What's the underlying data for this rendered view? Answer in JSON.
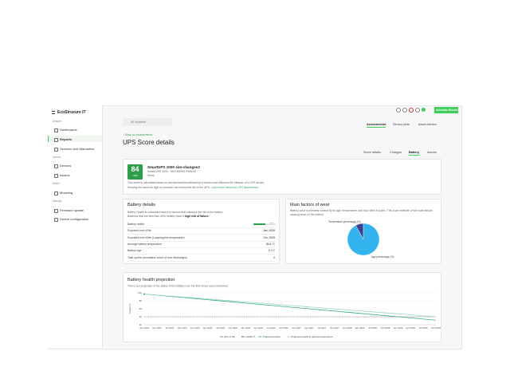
{
  "sidebar": {
    "product": "EcoStruxure IT",
    "sections": [
      {
        "title": "Analyze",
        "items": [
          "Dashboards",
          "Reports",
          "Services and Warranties"
        ]
      },
      {
        "title": "Monitor",
        "items": [
          "Devices",
          "Alarms"
        ]
      },
      {
        "title": "Model",
        "items": [
          "Modeling"
        ]
      },
      {
        "title": "Manage",
        "items": [
          "Firmware update",
          "Device configuration"
        ]
      }
    ]
  },
  "header": {
    "search_placeholder": "All locations",
    "tabs": [
      "Assessments",
      "Sensor plots",
      "Asset Advisor"
    ],
    "brand": "Schneider Electric"
  },
  "page": {
    "back_link": "‹ Back to Assessments",
    "title": "UPS Score details",
    "tabs": [
      "Score details",
      "Changes",
      "Battery",
      "Alarms"
    ]
  },
  "score_card": {
    "score": 84,
    "score_suffix": "/100",
    "device_name": "SmartUPS 1000 sim-changes2",
    "device_model": "Smart-UPS 1000 · SM-1M20B17N5N1/E",
    "location": "Remy",
    "description": "This score is calculated based on anonymized benchmarking of factors that influence the lifespan of a UPS device.",
    "description_2": "Keeping the score as high as possible can extend the life of the UPS.",
    "link": "Learn more about the UPS assessment."
  },
  "battery_details": {
    "title": "Battery details",
    "description": "Battery health is calculated based on factors that influence the life of the battery.",
    "description_2": "Batteries that are less than 30% healthy have a",
    "description_emphasis": "high risk of failure.",
    "rows": [
      {
        "label": "Battery health",
        "value": 55,
        "value_label": "55%"
      },
      {
        "label": "Expected end of life",
        "value": "Jan, 2029"
      },
      {
        "label": "Expected end of life (Lowering the temperature)",
        "value": "Oct, 2029"
      },
      {
        "label": "Average battery temperature",
        "value": "26.8 °C"
      },
      {
        "label": "Battery age",
        "value": "0.2 Y"
      },
      {
        "label": "Total cycles (cumulative count of over discharges)",
        "value": "0"
      }
    ]
  },
  "wear": {
    "title": "Main factors of wear",
    "description": "Battery wear is primarily caused by its age, temperature, and how often it cycles. This is an estimate of the main factors causing wear on the battery."
  },
  "chart_data": [
    {
      "type": "pie",
      "categories": [
        "Temperature percentage (%)",
        "Age percentage (%)"
      ],
      "values": [
        8,
        92
      ],
      "colors": [
        "#3b3f8f",
        "#33b4ef"
      ]
    },
    {
      "type": "line",
      "title": "Battery health projection",
      "subtitle": "This is our projection of the status of the battery over the time it has been monitored.",
      "y_label": "Health %",
      "categories": [
        "Jan 2024",
        "Apr 2024",
        "Jul 2024",
        "Oct 2024",
        "Jan 2025",
        "Apr 2025",
        "Jul 2025",
        "Oct 2025",
        "Jan 2026",
        "Apr 2026",
        "Jul 2026",
        "Oct 2026",
        "Jan 2027",
        "Apr 2027",
        "Jul 2027",
        "Oct 2027",
        "Jan 2028",
        "Apr 2028",
        "Jul 2028",
        "Oct 2028",
        "Jan 2029",
        "Apr 2029",
        "Jul 2029",
        "Oct 2029"
      ],
      "ylim": [
        20,
        100
      ],
      "yticks": [
        20,
        40,
        60,
        80,
        100
      ],
      "series": [
        {
          "name": "End of life",
          "color": "#555555",
          "dashed": true,
          "values": [
            40,
            40,
            40,
            40,
            40,
            40,
            40,
            40,
            40,
            40,
            40,
            40,
            40,
            40,
            40,
            40,
            40,
            40,
            40,
            40,
            40,
            40,
            40,
            40
          ]
        },
        {
          "name": "Health %",
          "color": "#1f6f5c",
          "values": [
            97,
            null,
            null,
            null,
            null,
            null,
            null,
            null,
            null,
            null,
            null,
            null,
            null,
            null,
            null,
            null,
            null,
            null,
            null,
            null,
            null,
            null,
            null,
            null
          ]
        },
        {
          "name": "Projected health",
          "color": "#3aa98a",
          "values": [
            97,
            94.2,
            91.3,
            88.5,
            85.6,
            82.8,
            79.9,
            77.1,
            74.2,
            71.4,
            68.5,
            65.7,
            62.8,
            60,
            57.1,
            54.3,
            51.4,
            48.6,
            45.7,
            42.9,
            40,
            37.2,
            34.3,
            31.5
          ]
        },
        {
          "name": "Projected health at optimal temperature",
          "color": "#9bd6cf",
          "values": [
            97,
            94.5,
            92,
            89.6,
            87.1,
            84.6,
            82.1,
            79.7,
            77.2,
            74.7,
            72.2,
            69.7,
            67.3,
            64.8,
            62.3,
            59.8,
            57.3,
            54.9,
            52.4,
            49.9,
            47.4,
            45,
            42.5,
            40
          ]
        }
      ]
    }
  ]
}
